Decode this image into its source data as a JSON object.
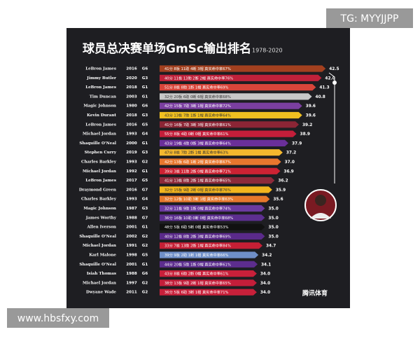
{
  "chart_data": {
    "type": "bar",
    "title": "球员总决赛单场GmSc输出排名",
    "subtitle": "1978-2020",
    "categories": [
      "LeBron James",
      "Jimmy Butler",
      "LeBron James",
      "Tim Duncan",
      "Magic Johnson",
      "Kevin Durant",
      "LeBron James",
      "Michael Jordan",
      "Shaquille O'Neal",
      "Stephen Curry",
      "Charles Barkley",
      "Michael Jordan",
      "LeBron James",
      "Draymond Green",
      "Charles Barkley",
      "Magic Johnson",
      "James Worthy",
      "Allen Iverson",
      "Shaquille O'Neal",
      "Michael Jordan",
      "Karl Malone",
      "Shaquille O'Neal",
      "Isiah Thomas",
      "Michael Jordan",
      "Dwyane Wade"
    ],
    "years": [
      "2016",
      "2020",
      "2018",
      "2003",
      "1980",
      "2018",
      "2016",
      "1993",
      "2000",
      "2019",
      "1993",
      "1992",
      "2017",
      "2016",
      "1993",
      "1987",
      "1988",
      "2001",
      "2002",
      "1991",
      "1998",
      "2001",
      "1988",
      "1997",
      "2011"
    ],
    "games": [
      "G6",
      "G3",
      "G1",
      "G1",
      "G6",
      "G3",
      "G5",
      "G4",
      "G1",
      "G3",
      "G2",
      "G1",
      "G5",
      "G7",
      "G4",
      "G3",
      "G7",
      "G1",
      "G2",
      "G2",
      "G5",
      "G1",
      "G6",
      "G2",
      "G2"
    ],
    "stats": [
      "41分 8板 11助 4断 3帽 真实命中率67%",
      "40分 11板 13助 2断 2帽 真实命中率76%",
      "51分 8板 8助 1断 1帽 真实命中率69%",
      "32分 20板 6助 0断 6帽 真实命中率68%",
      "42分 15板 7助 3断 1帽 真实命中率72%",
      "43分 13板 7助 1断 1帽 真实命中率64%",
      "41分 16板 7助 3断 3帽 真实命中率61%",
      "55分 8板 4助 0断 0帽 真实命中率61%",
      "43分 19板 4助 0断 3帽 真实命中率64%",
      "47分 8板 7助 2断 1帽 真实命中率63%",
      "42分 13板 6助 1断 2帽 真实命中率67%",
      "39分 3板 11助 2断 0帽 真实命中率71%",
      "41分 13板 8助 2断 1帽 真实命中率65%",
      "32分 15板 9助 2断 0帽 真实命中率76%",
      "32分 12板 10助 3断 1帽 真实命中率63%",
      "32分 11板 9助 1断 0帽 真实命中率74%",
      "36分 16板 10助 0断 0帽 真实命中率68%",
      "48分 5板 6助 5断 0帽 真实命中率53%",
      "40分 12板 8助 2断 3帽 真实命中率69%",
      "33分 7板 13助 2断 1帽 真实命中率84%",
      "39分 9板 2助 1断 1帽 真实命中率66%",
      "44分 20板 5助 1断 0帽 真实命中率61%",
      "43分 8板 6助 2断 0帽 真实命中率61%",
      "38分 13板 9助 2断 1帽 真实命中率65%",
      "36分 5板 6助 3断 1帽 真实命中率71%"
    ],
    "values": [
      42.5,
      42.0,
      41.3,
      40.8,
      39.6,
      39.6,
      39.2,
      38.9,
      37.9,
      37.2,
      37.0,
      36.9,
      36.2,
      35.9,
      35.6,
      35.0,
      35.0,
      35.0,
      35.0,
      34.7,
      34.2,
      34.1,
      34.0,
      34.0,
      34.0
    ],
    "value_labels": [
      "42.5",
      "42.0",
      "41.3",
      "40.8",
      "39.6",
      "39.6",
      "39.2",
      "38.9",
      "37.9",
      "37.2",
      "37.0",
      "36.9",
      "36.2",
      "35.9",
      "35.6",
      "35.0",
      "35.0",
      "35.0",
      "35.0",
      "34.7",
      "34.2",
      "34.1",
      "34.0",
      "34.0",
      "34.0"
    ],
    "colors": [
      "#a3401f",
      "#c0213a",
      "#d8453a",
      "#c8c8c8",
      "#7b3fa0",
      "#f0c020",
      "#8b2535",
      "#c41e3a",
      "#6a2f9a",
      "#f5b82e",
      "#e8772e",
      "#cc2233",
      "#8e2a3a",
      "#f2b51d",
      "#e6782c",
      "#6b3aa0",
      "#5d2f90",
      "#111111",
      "#5a2a8a",
      "#c51f35",
      "#6f8fc8",
      "#5c2d8e",
      "#c8203a",
      "#c41e3a",
      "#c8203a"
    ],
    "xlim": [
      22,
      43
    ]
  },
  "watermark_top": "TG: MYYJJPP",
  "watermark_bottom": "www.hbsfxy.com",
  "logo": "腾讯体育"
}
